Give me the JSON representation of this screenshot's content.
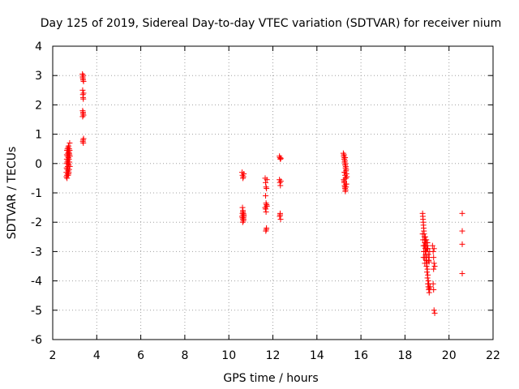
{
  "chart_data": {
    "type": "scatter",
    "title": "Day 125 of 2019, Sidereal Day-to-day VTEC variation (SDTVAR) for receiver nium",
    "xlabel": "GPS time / hours",
    "ylabel": "SDTVAR / TECUs",
    "xlim": [
      2,
      22
    ],
    "ylim": [
      -6,
      4
    ],
    "xticks": [
      "2",
      "4",
      "6",
      "8",
      "10",
      "12",
      "14",
      "16",
      "18",
      "20",
      "22"
    ],
    "yticks": [
      "4",
      "3",
      "2",
      "1",
      "0",
      "-1",
      "-2",
      "-3",
      "-4",
      "-5",
      "-6"
    ],
    "grid": true,
    "marker": "plus",
    "color": "#ff0000",
    "series": [
      {
        "name": "SDTVAR",
        "x": [
          2.62,
          2.62,
          2.63,
          2.63,
          2.64,
          2.64,
          2.65,
          2.65,
          2.66,
          2.66,
          2.67,
          2.67,
          2.68,
          2.68,
          2.69,
          2.69,
          2.7,
          2.7,
          2.71,
          2.71,
          2.72,
          2.72,
          2.73,
          2.73,
          2.74,
          2.74,
          2.75,
          2.75,
          2.76,
          2.76,
          2.77,
          2.77,
          2.78,
          2.78,
          2.65,
          2.7,
          2.75,
          2.68,
          2.72,
          3.35,
          3.36,
          3.37,
          3.38,
          3.39,
          3.4,
          3.36,
          3.37,
          3.38,
          3.39,
          3.4,
          3.36,
          3.38,
          3.4,
          3.36,
          3.38,
          3.4,
          3.37,
          3.39,
          3.38,
          10.6,
          10.62,
          10.64,
          10.66,
          10.68,
          10.62,
          10.64,
          10.66,
          10.68,
          10.6,
          10.62,
          10.64,
          10.66,
          10.68,
          10.62,
          10.64,
          10.66,
          10.63,
          10.65,
          10.67,
          11.65,
          11.67,
          11.69,
          11.71,
          11.73,
          11.67,
          11.69,
          11.71,
          11.73,
          11.65,
          11.67,
          11.69,
          11.71,
          11.7,
          11.68,
          11.72,
          12.3,
          12.32,
          12.34,
          12.36,
          12.3,
          12.32,
          12.34,
          12.36,
          12.33,
          12.31,
          12.35,
          12.33,
          15.2,
          15.22,
          15.24,
          15.26,
          15.28,
          15.3,
          15.32,
          15.34,
          15.36,
          15.22,
          15.24,
          15.26,
          15.28,
          15.3,
          15.32,
          15.34,
          15.23,
          15.25,
          15.27,
          15.29,
          15.31,
          15.33,
          15.26,
          15.28,
          15.3,
          15.24,
          15.32,
          15.27,
          15.29,
          15.25,
          15.31,
          15.28,
          18.8,
          18.82,
          18.84,
          18.86,
          18.88,
          18.9,
          18.92,
          18.94,
          18.96,
          18.98,
          19.0,
          19.02,
          19.04,
          19.06,
          19.08,
          19.1,
          19.12,
          19.14,
          18.8,
          18.82,
          18.84,
          18.86,
          18.88,
          18.9,
          18.92,
          18.94,
          18.96,
          18.98,
          19.0,
          19.02,
          19.04,
          19.06,
          19.08,
          19.1,
          18.81,
          18.83,
          18.85,
          18.87,
          18.89,
          18.91,
          18.93,
          18.95,
          18.97,
          18.99,
          19.01,
          19.03,
          19.05,
          19.07,
          19.09,
          18.84,
          18.86,
          18.88,
          18.9,
          18.92,
          18.94,
          18.96,
          18.98,
          19.0,
          19.02,
          19.04,
          19.06,
          19.08,
          19.1,
          19.12,
          19.25,
          19.28,
          19.3,
          19.32,
          19.35,
          19.28,
          19.3,
          19.32,
          19.35,
          19.3,
          19.32,
          20.6,
          20.6,
          20.6,
          20.6
        ],
        "y": [
          -0.45,
          -0.3,
          -0.15,
          0.0,
          0.15,
          0.3,
          0.45,
          -0.4,
          -0.2,
          0.05,
          0.25,
          0.5,
          -0.35,
          -0.1,
          0.1,
          0.35,
          0.55,
          -0.25,
          0.0,
          0.2,
          0.4,
          0.6,
          -0.3,
          -0.05,
          0.15,
          0.35,
          0.5,
          -0.2,
          0.05,
          0.3,
          0.45,
          0.7,
          -0.1,
          0.25,
          -0.5,
          -0.4,
          0.35,
          0.45,
          -0.35,
          3.05,
          2.95,
          2.9,
          2.85,
          3.0,
          2.8,
          2.5,
          2.35,
          2.25,
          2.2,
          2.4,
          1.8,
          1.7,
          1.65,
          1.6,
          1.75,
          0.85,
          0.75,
          0.7,
          0.8,
          -0.3,
          -0.4,
          -0.5,
          -0.45,
          -0.35,
          -1.5,
          -1.6,
          -1.7,
          -1.75,
          -1.8,
          -1.85,
          -1.9,
          -1.95,
          -1.8,
          -1.7,
          -1.65,
          -1.85,
          -2.0,
          -1.75,
          -1.9,
          -0.5,
          -0.65,
          -0.8,
          -0.85,
          -0.55,
          -1.1,
          -1.35,
          -1.4,
          -1.45,
          -1.5,
          -1.55,
          -1.65,
          -2.2,
          -2.25,
          -2.3,
          -1.45,
          0.25,
          0.2,
          0.15,
          0.18,
          -0.55,
          -0.65,
          -0.75,
          -0.6,
          -1.7,
          -1.8,
          -1.9,
          -1.75,
          0.35,
          0.25,
          0.15,
          0.05,
          -0.05,
          -0.15,
          -0.25,
          -0.35,
          -0.45,
          -0.55,
          -0.65,
          -0.75,
          -0.85,
          -0.9,
          -0.8,
          -0.7,
          0.3,
          0.2,
          0.1,
          0.0,
          -0.1,
          -0.2,
          -0.3,
          -0.4,
          -0.5,
          -0.6,
          -0.7,
          -0.8,
          -0.95,
          -0.3,
          -0.5,
          0.2,
          -1.7,
          -1.9,
          -2.1,
          -2.3,
          -2.5,
          -2.7,
          -2.9,
          -3.1,
          -3.3,
          -3.5,
          -3.7,
          -3.9,
          -4.1,
          -4.2,
          -4.3,
          -4.4,
          -4.3,
          -4.2,
          -2.4,
          -2.6,
          -2.8,
          -3.0,
          -3.2,
          -3.4,
          -2.6,
          -2.8,
          -3.0,
          -3.2,
          -3.4,
          -3.6,
          -3.8,
          -4.0,
          -4.1,
          -4.25,
          -1.8,
          -2.0,
          -2.2,
          -2.4,
          -2.6,
          -2.8,
          -3.0,
          -3.2,
          -2.6,
          -2.8,
          -2.7,
          -2.9,
          -3.1,
          -3.3,
          -3.35,
          -3.2,
          -3.0,
          -2.8,
          -2.6,
          -2.5,
          -2.7,
          -3.0,
          -3.3,
          -2.9,
          -2.7,
          -2.9,
          -3.1,
          -3.3,
          -3.2,
          -3.0,
          -2.8,
          -3.0,
          -3.2,
          -3.4,
          -3.5,
          -4.1,
          -4.3,
          -5.0,
          -5.1,
          -3.6,
          -2.9,
          -1.7,
          -2.3,
          -2.75,
          -3.75
        ]
      }
    ]
  }
}
